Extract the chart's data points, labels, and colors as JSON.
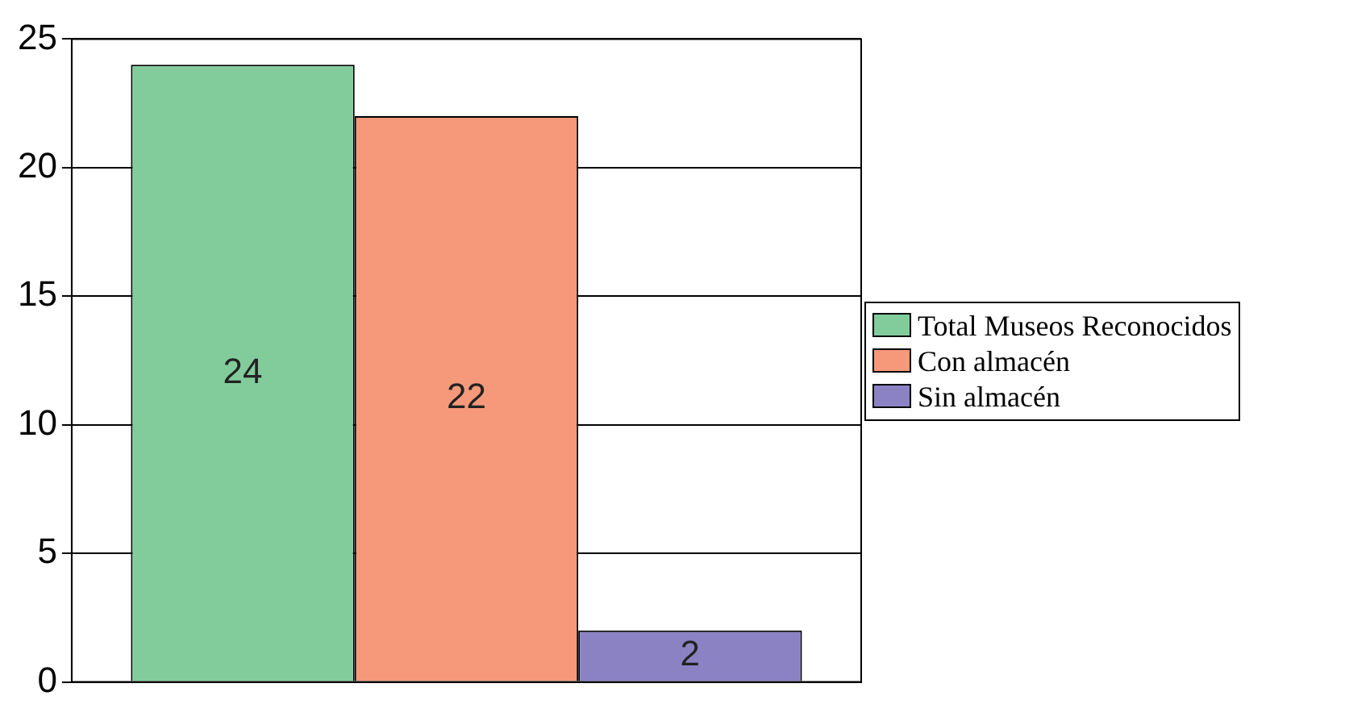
{
  "chart_data": {
    "type": "bar",
    "categories": [
      null
    ],
    "series": [
      {
        "name": "Total Museos Reconocidos",
        "color": "#82cc9c",
        "values": [
          24
        ]
      },
      {
        "name": "Con almacén",
        "color": "#f5997a",
        "values": [
          22
        ]
      },
      {
        "name": "Sin almacén",
        "color": "#8b82c4",
        "values": [
          2
        ]
      }
    ],
    "ylim": [
      0,
      25
    ],
    "yticks": [
      0,
      5,
      10,
      15,
      20,
      25
    ],
    "grid": "y",
    "legend": "right",
    "data_labels": true
  }
}
